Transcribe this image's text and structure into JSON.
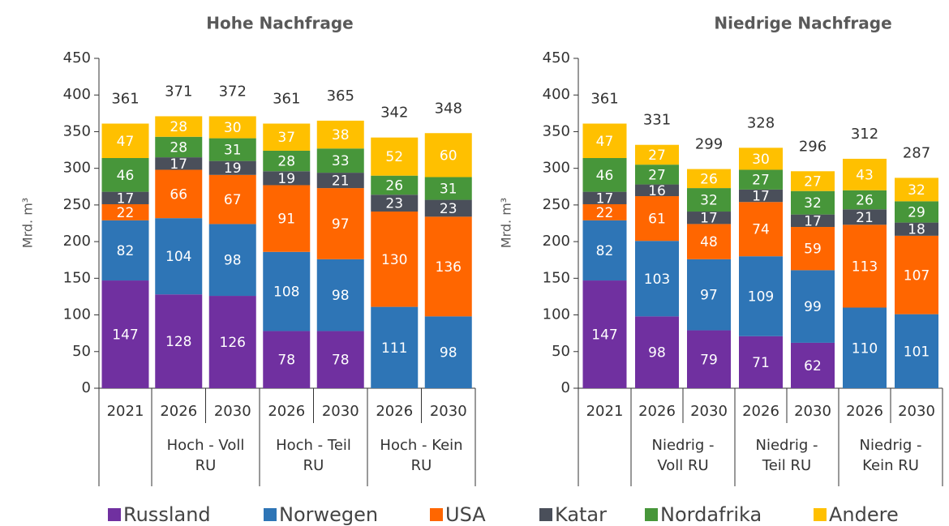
{
  "chart_data": [
    {
      "type": "stacked_bar",
      "title": "Hohe Nachfrage",
      "y_label": "Mrd. m³",
      "ylim": [
        0,
        450
      ],
      "yticks": [
        0,
        50,
        100,
        150,
        200,
        250,
        300,
        350,
        400,
        450
      ],
      "groups": [
        {
          "label": null,
          "categories": [
            "2021"
          ]
        },
        {
          "label": [
            "Hoch - Voll",
            "RU"
          ],
          "categories": [
            "2026",
            "2030"
          ]
        },
        {
          "label": [
            "Hoch - Teil",
            "RU"
          ],
          "categories": [
            "2026",
            "2030"
          ]
        },
        {
          "label": [
            "Hoch - Kein",
            "RU"
          ],
          "categories": [
            "2026",
            "2030"
          ]
        }
      ],
      "series": [
        {
          "name": "Russland",
          "color": "#7030a0",
          "values": [
            147,
            128,
            126,
            78,
            78,
            null,
            null
          ]
        },
        {
          "name": "Norwegen",
          "color": "#2e75b6",
          "values": [
            82,
            104,
            98,
            108,
            98,
            111,
            98
          ]
        },
        {
          "name": "USA",
          "color": "#ff6600",
          "values": [
            22,
            66,
            67,
            91,
            97,
            130,
            136
          ]
        },
        {
          "name": "Katar",
          "color": "#4a4f5a",
          "values": [
            17,
            17,
            19,
            19,
            21,
            23,
            23
          ]
        },
        {
          "name": "Nordafrika",
          "color": "#47963a",
          "values": [
            46,
            28,
            31,
            28,
            33,
            26,
            31
          ]
        },
        {
          "name": "Andere",
          "color": "#ffc000",
          "values": [
            47,
            28,
            30,
            37,
            38,
            52,
            60
          ]
        }
      ],
      "totals": [
        361,
        371,
        372,
        361,
        365,
        342,
        348
      ]
    },
    {
      "type": "stacked_bar",
      "title": "Niedrige Nachfrage",
      "y_label": "Mrd. m³",
      "ylim": [
        0,
        450
      ],
      "yticks": [
        0,
        50,
        100,
        150,
        200,
        250,
        300,
        350,
        400,
        450
      ],
      "groups": [
        {
          "label": null,
          "categories": [
            "2021"
          ]
        },
        {
          "label": [
            "Niedrig -",
            "Voll RU"
          ],
          "categories": [
            "2026",
            "2030"
          ]
        },
        {
          "label": [
            "Niedrig -",
            "Teil RU"
          ],
          "categories": [
            "2026",
            "2030"
          ]
        },
        {
          "label": [
            "Niedrig -",
            "Kein RU"
          ],
          "categories": [
            "2026",
            "2030"
          ]
        }
      ],
      "series": [
        {
          "values": [
            147,
            98,
            79,
            71,
            62,
            null,
            null
          ]
        },
        {
          "values": [
            82,
            103,
            97,
            109,
            99,
            110,
            101
          ]
        },
        {
          "values": [
            22,
            61,
            48,
            74,
            59,
            113,
            107
          ]
        },
        {
          "values": [
            17,
            16,
            17,
            17,
            17,
            21,
            18
          ]
        },
        {
          "values": [
            46,
            27,
            32,
            27,
            32,
            26,
            29
          ]
        },
        {
          "values": [
            47,
            27,
            26,
            30,
            27,
            43,
            32
          ]
        }
      ],
      "totals": [
        361,
        331,
        299,
        328,
        296,
        312,
        287
      ]
    }
  ]
}
